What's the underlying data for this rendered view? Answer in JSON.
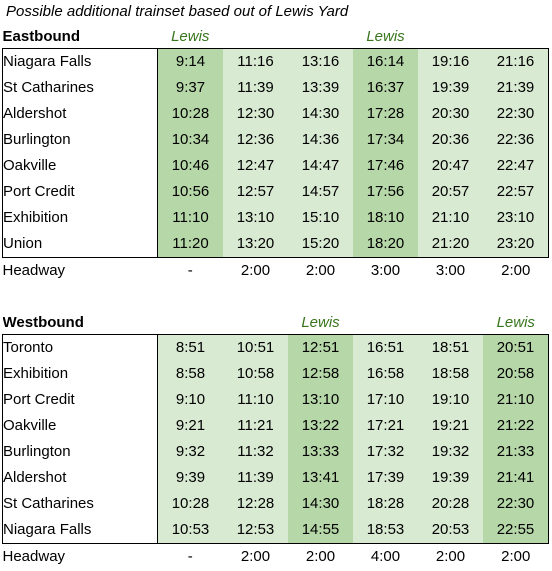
{
  "caption": "Possible additional trainset based out of Lewis Yard",
  "eastbound": {
    "direction_label": "Eastbound",
    "lewis_labels": [
      "Lewis",
      "",
      "",
      "Lewis",
      "",
      ""
    ],
    "highlight_columns": [
      0,
      3
    ],
    "rows": [
      {
        "station": "Niagara Falls",
        "times": [
          "9:14",
          "11:16",
          "13:16",
          "16:14",
          "19:16",
          "21:16"
        ]
      },
      {
        "station": "St Catharines",
        "times": [
          "9:37",
          "11:39",
          "13:39",
          "16:37",
          "19:39",
          "21:39"
        ]
      },
      {
        "station": "Aldershot",
        "times": [
          "10:28",
          "12:30",
          "14:30",
          "17:28",
          "20:30",
          "22:30"
        ]
      },
      {
        "station": "Burlington",
        "times": [
          "10:34",
          "12:36",
          "14:36",
          "17:34",
          "20:36",
          "22:36"
        ]
      },
      {
        "station": "Oakville",
        "times": [
          "10:46",
          "12:47",
          "14:47",
          "17:46",
          "20:47",
          "22:47"
        ]
      },
      {
        "station": "Port Credit",
        "times": [
          "10:56",
          "12:57",
          "14:57",
          "17:56",
          "20:57",
          "22:57"
        ]
      },
      {
        "station": "Exhibition",
        "times": [
          "11:10",
          "13:10",
          "15:10",
          "18:10",
          "21:10",
          "23:10"
        ]
      },
      {
        "station": "Union",
        "times": [
          "11:20",
          "13:20",
          "15:20",
          "18:20",
          "21:20",
          "23:20"
        ]
      }
    ],
    "headway": {
      "label": "Headway",
      "values": [
        "-",
        "2:00",
        "2:00",
        "3:00",
        "3:00",
        "2:00"
      ]
    }
  },
  "westbound": {
    "direction_label": "Westbound",
    "lewis_labels": [
      "",
      "",
      "Lewis",
      "",
      "",
      "Lewis"
    ],
    "highlight_columns": [
      2,
      5
    ],
    "rows": [
      {
        "station": "Toronto",
        "times": [
          "8:51",
          "10:51",
          "12:51",
          "16:51",
          "18:51",
          "20:51"
        ]
      },
      {
        "station": "Exhibition",
        "times": [
          "8:58",
          "10:58",
          "12:58",
          "16:58",
          "18:58",
          "20:58"
        ]
      },
      {
        "station": "Port Credit",
        "times": [
          "9:10",
          "11:10",
          "13:10",
          "17:10",
          "19:10",
          "21:10"
        ]
      },
      {
        "station": "Oakville",
        "times": [
          "9:21",
          "11:21",
          "13:22",
          "17:21",
          "19:21",
          "21:22"
        ]
      },
      {
        "station": "Burlington",
        "times": [
          "9:32",
          "11:32",
          "13:33",
          "17:32",
          "19:32",
          "21:33"
        ]
      },
      {
        "station": "Aldershot",
        "times": [
          "9:39",
          "11:39",
          "13:41",
          "17:39",
          "19:39",
          "21:41"
        ]
      },
      {
        "station": "St Catharines",
        "times": [
          "10:28",
          "12:28",
          "14:30",
          "18:28",
          "20:28",
          "22:30"
        ]
      },
      {
        "station": "Niagara Falls",
        "times": [
          "10:53",
          "12:53",
          "14:55",
          "18:53",
          "20:53",
          "22:55"
        ]
      }
    ],
    "headway": {
      "label": "Headway",
      "values": [
        "-",
        "2:00",
        "2:00",
        "4:00",
        "2:00",
        "2:00"
      ]
    }
  }
}
